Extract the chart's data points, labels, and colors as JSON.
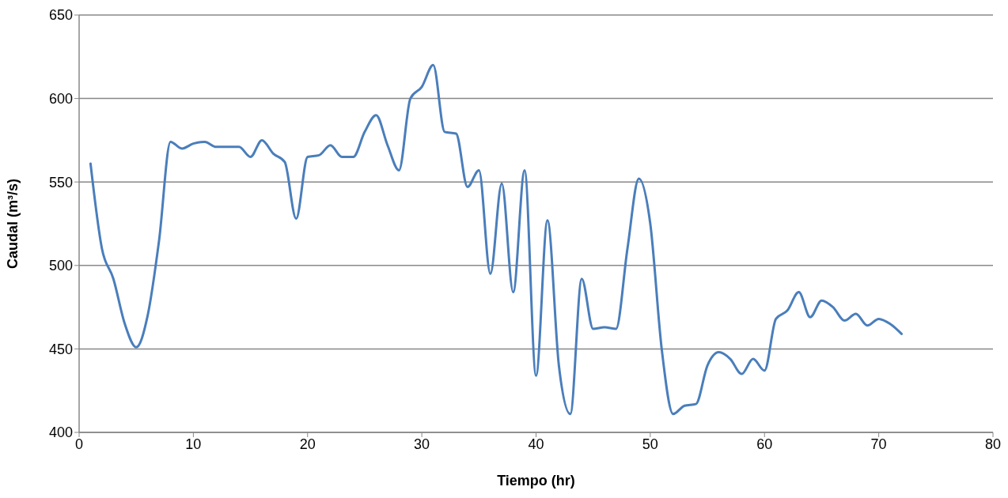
{
  "chart_data": {
    "type": "line",
    "xlabel": "Tiempo (hr)",
    "ylabel": "Caudal (m³/s)",
    "x": [
      1,
      2,
      3,
      4,
      5,
      6,
      7,
      8,
      9,
      10,
      11,
      12,
      13,
      14,
      15,
      16,
      17,
      18,
      19,
      20,
      21,
      22,
      23,
      24,
      25,
      26,
      27,
      28,
      29,
      30,
      31,
      32,
      33,
      34,
      35,
      36,
      37,
      38,
      39,
      40,
      41,
      42,
      43,
      44,
      45,
      46,
      47,
      48,
      49,
      50,
      51,
      52,
      53,
      54,
      55,
      56,
      57,
      58,
      59,
      60,
      61,
      62,
      63,
      64,
      65,
      66,
      67,
      68,
      69,
      70,
      71,
      72
    ],
    "series": [
      {
        "color": "#4a7ebb",
        "values": [
          561,
          510,
          492,
          465,
          451,
          470,
          515,
          574,
          570,
          573,
          574,
          571,
          571,
          571,
          565,
          575,
          567,
          562,
          528,
          565,
          566,
          572,
          565,
          565,
          580,
          590,
          572,
          557,
          600,
          607,
          620,
          580,
          579,
          547,
          557,
          495,
          549,
          484,
          557,
          434,
          527,
          440,
          411,
          492,
          462,
          463,
          462,
          510,
          552,
          525,
          450,
          411,
          416,
          417,
          440,
          448,
          444,
          435,
          444,
          437,
          468,
          473,
          484,
          469,
          479,
          475,
          467,
          471,
          464,
          468,
          465,
          459
        ]
      }
    ],
    "xlim": [
      0,
      80
    ],
    "xticks": [
      0,
      10,
      20,
      30,
      40,
      50,
      60,
      70,
      80
    ],
    "ylim": [
      400,
      650
    ],
    "yticks": [
      400,
      450,
      500,
      550,
      600,
      650
    ],
    "grid": "y",
    "legend": false,
    "marker": "none",
    "line_style": "solid"
  }
}
